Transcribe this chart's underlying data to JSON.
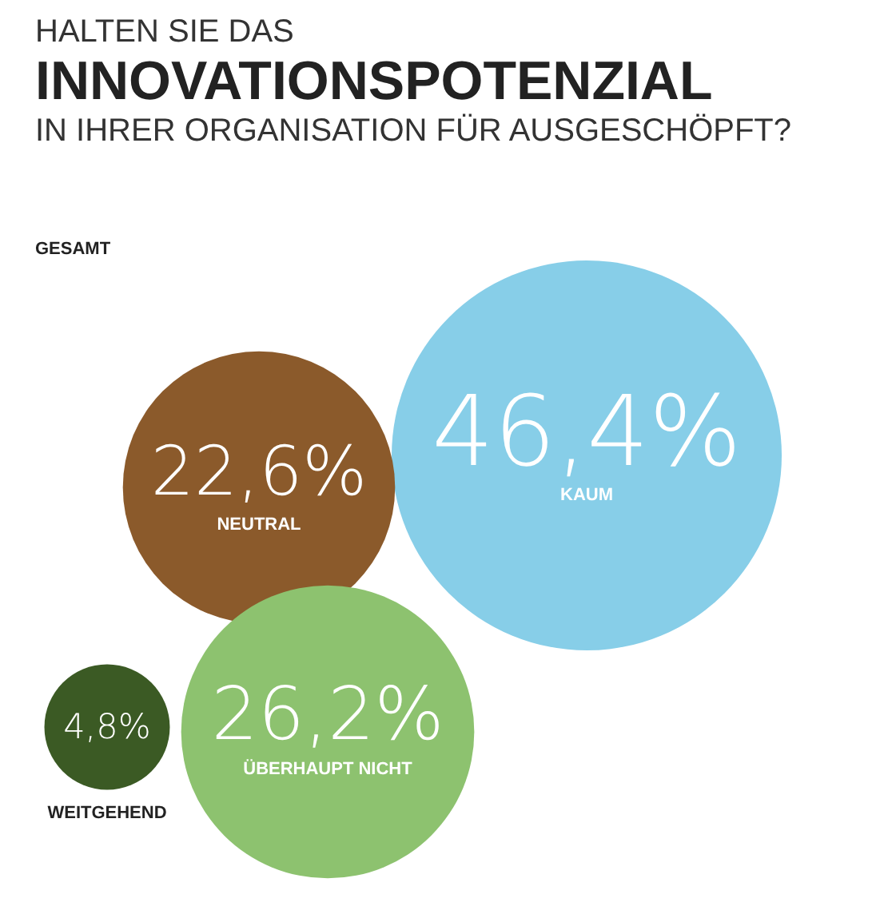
{
  "chart_data": {
    "type": "other",
    "title": "HALTEN SIE DAS\nINNOVATIONSPOTENZIAL\nIN IHRER ORGANISATION FÜR AUSGESCHÖPFT?",
    "subtitle": "GESAMT",
    "categories": [
      "KAUM",
      "NEUTRAL",
      "ÜBERHAUPT NICHT",
      "WEITGEHEND"
    ],
    "values": [
      46.4,
      22.6,
      26.2,
      4.8
    ],
    "value_labels": [
      "46,4%",
      "22,6%",
      "26,2%",
      "4,8%"
    ],
    "colors": [
      "#87cee8",
      "#8b5a2b",
      "#8dc26f",
      "#3b5a24"
    ]
  }
}
